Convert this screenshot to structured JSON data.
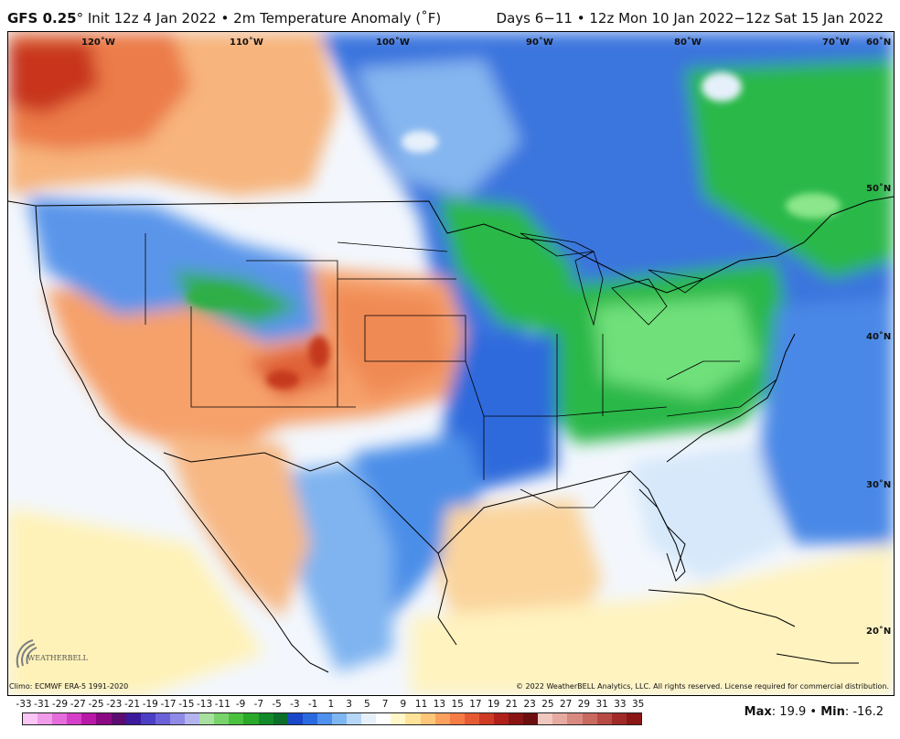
{
  "header": {
    "model": "GFS 0.25",
    "degree_mark": "°",
    "init": "Init 12z 4 Jan 2022",
    "sep": "•",
    "product": "2m Temperature Anomaly (˚F)",
    "days": "Days 6−11",
    "valid": "12z Mon 10 Jan 2022−12z Sat 15 Jan 2022"
  },
  "map": {
    "lon_labels": [
      "120˚W",
      "110˚W",
      "100˚W",
      "90˚W",
      "80˚W",
      "70˚W"
    ],
    "lat_labels": [
      "60˚N",
      "50˚N",
      "40˚N",
      "30˚N",
      "20˚N"
    ]
  },
  "footer": {
    "climo": "Climo: ECMWF ERA-5 1991-2020",
    "copyright": "© 2022 WeatherBELL Analytics, LLC. All rights reserved. License required for commercial distribution.",
    "logo_text": "WEATHERBELL",
    "max_label": "Max",
    "max_value": ": 19.9",
    "sep": " • ",
    "min_label": "Min",
    "min_value": ": -16.2"
  },
  "legend": {
    "labels": [
      "-33",
      "-31",
      "-29",
      "-27",
      "-25",
      "-23",
      "-21",
      "-19",
      "-17",
      "-15",
      "-13",
      "-11",
      "-9",
      "-7",
      "-5",
      "-3",
      "-1",
      "1",
      "3",
      "5",
      "7",
      "9",
      "11",
      "13",
      "15",
      "17",
      "19",
      "21",
      "23",
      "25",
      "27",
      "29",
      "31",
      "33",
      "35"
    ],
    "colors": [
      "#f9c6f5",
      "#f19ce9",
      "#e56ddb",
      "#d63fc9",
      "#b81aa7",
      "#8b0a84",
      "#5c0c70",
      "#3b1a9c",
      "#4b3fc6",
      "#6b62d9",
      "#8f8ae6",
      "#b3b3ee",
      "#a8e0a0",
      "#79d36b",
      "#4cc03f",
      "#2aa82a",
      "#138a2a",
      "#0b6f2a",
      "#1a46c8",
      "#2a6ae0",
      "#4f91ec",
      "#7fb6f2",
      "#b6d6f7",
      "#e6f0fb",
      "#ffffff",
      "#fff7c7",
      "#ffe39a",
      "#fdc679",
      "#fba15d",
      "#f57c45",
      "#e65a33",
      "#cf3a25",
      "#b0201b",
      "#8a1414",
      "#6d0e0e",
      "#f0c8c0",
      "#e6aaa0",
      "#d88a80",
      "#c96a60",
      "#b84a44",
      "#a02a28",
      "#8a1616"
    ]
  }
}
